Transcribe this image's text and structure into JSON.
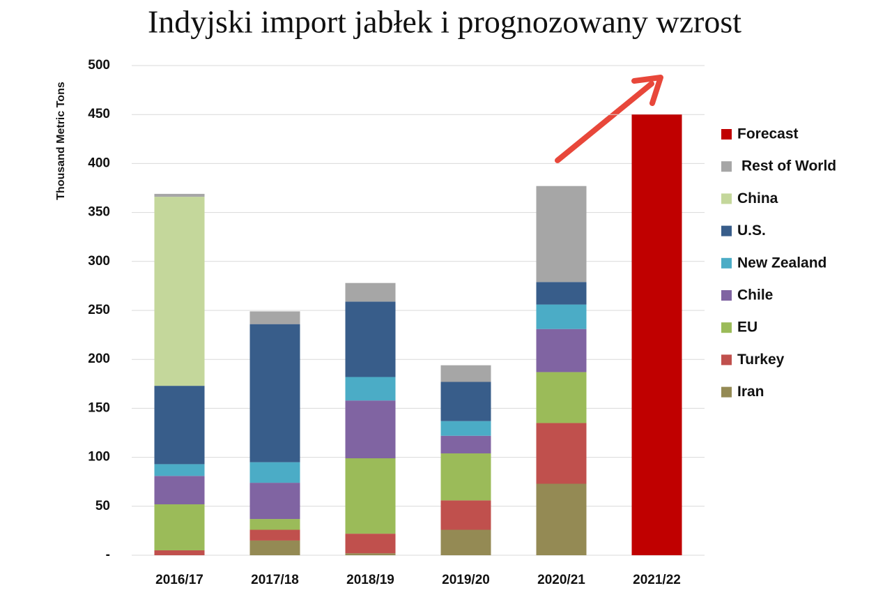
{
  "chart_data": {
    "type": "stacked_bar",
    "title": "Indyjski import jabłek i prognozowany wzrost",
    "y_label": "Thousand Metric Tons",
    "categories": [
      "2016/17",
      "2017/18",
      "2018/19",
      "2019/20",
      "2020/21",
      "2021/22"
    ],
    "ylim": [
      0,
      500
    ],
    "yticks": [
      {
        "value": 0,
        "label": "-"
      },
      50,
      100,
      150,
      200,
      250,
      300,
      350,
      400,
      450,
      500
    ],
    "grid": true,
    "legend": "right",
    "series": [
      {
        "name": "Iran",
        "color": "#948a54",
        "values": [
          null,
          15,
          2,
          26,
          73,
          null
        ]
      },
      {
        "name": "Turkey",
        "color": "#c0504d",
        "values": [
          5,
          11,
          20,
          30,
          62,
          null
        ]
      },
      {
        "name": "EU",
        "color": "#9bbb59",
        "values": [
          47,
          11,
          77,
          48,
          52,
          null
        ]
      },
      {
        "name": "Chile",
        "color": "#8064a2",
        "values": [
          29,
          37,
          59,
          18,
          44,
          null
        ]
      },
      {
        "name": "New Zealand",
        "color": "#4bacc6",
        "values": [
          12,
          21,
          24,
          15,
          25,
          null
        ]
      },
      {
        "name": "U.S.",
        "color": "#385d8a",
        "values": [
          80,
          141,
          77,
          40,
          23,
          null
        ]
      },
      {
        "name": "China",
        "color": "#c4d79b",
        "values": [
          193,
          null,
          null,
          null,
          null,
          null
        ]
      },
      {
        "name": "Rest of World",
        "color": "#a6a6a6",
        "values": [
          3,
          13,
          19,
          17,
          98,
          null
        ]
      },
      {
        "name": "Forecast",
        "color": "#c00000",
        "values": [
          null,
          null,
          null,
          null,
          null,
          450
        ]
      }
    ]
  }
}
